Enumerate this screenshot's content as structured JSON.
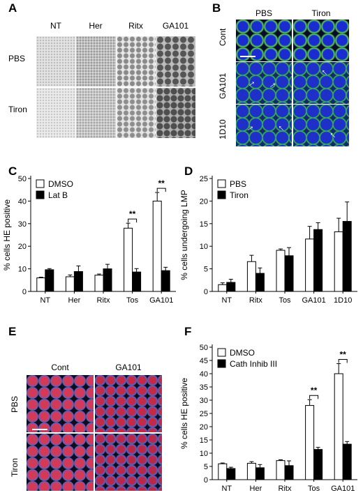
{
  "panels": {
    "A": {
      "label": "A",
      "columns": [
        "NT",
        "Her",
        "Ritx",
        "GA101"
      ],
      "rows": [
        "PBS",
        "Tiron"
      ]
    },
    "B": {
      "label": "B",
      "columns": [
        "PBS",
        "Tiron"
      ],
      "rows": [
        "Cont",
        "GA101",
        "1D10"
      ]
    },
    "E": {
      "label": "E",
      "columns": [
        "Cont",
        "GA101"
      ],
      "rows": [
        "PBS",
        "Tiron"
      ]
    }
  },
  "chart_data": [
    {
      "panel": "C",
      "type": "bar",
      "ylabel": "% cells HE positive",
      "ylim": [
        0,
        50
      ],
      "yticks": [
        0,
        10,
        20,
        30,
        40,
        50
      ],
      "categories": [
        "NT",
        "Her",
        "Ritx",
        "Tos",
        "GA101"
      ],
      "series": [
        {
          "name": "DMSO",
          "color": "#ffffff",
          "values": [
            6,
            6.5,
            7.2,
            28,
            40
          ],
          "errors": [
            0.3,
            0.8,
            0.5,
            2.2,
            3.8
          ]
        },
        {
          "name": "Lat B",
          "color": "#000000",
          "values": [
            9.6,
            8.8,
            10,
            8.6,
            9.2
          ],
          "errors": [
            0.5,
            2.5,
            2.0,
            1.5,
            1.5
          ]
        }
      ],
      "annotations": [
        {
          "category": "Tos",
          "text": "**"
        },
        {
          "category": "GA101",
          "text": "**"
        }
      ],
      "legend": "top-left"
    },
    {
      "panel": "D",
      "type": "bar",
      "ylabel": "% cells undergoing LMP",
      "ylim": [
        0,
        25
      ],
      "yticks": [
        0,
        5,
        10,
        15,
        20,
        25
      ],
      "categories": [
        "NT",
        "Ritx",
        "Tos",
        "GA101",
        "1D10"
      ],
      "series": [
        {
          "name": "PBS",
          "color": "#ffffff",
          "values": [
            1.5,
            6.6,
            9.1,
            11.6,
            13.2
          ],
          "errors": [
            0.4,
            1.4,
            0.3,
            2.8,
            3.0
          ]
        },
        {
          "name": "Tiron",
          "color": "#000000",
          "values": [
            2.0,
            4.0,
            7.9,
            13.7,
            15.5
          ],
          "errors": [
            0.7,
            1.2,
            1.8,
            1.5,
            4.3
          ]
        }
      ],
      "legend": "top-left"
    },
    {
      "panel": "F",
      "type": "bar",
      "ylabel": "% cells HE positive",
      "ylim": [
        0,
        50
      ],
      "yticks": [
        0,
        5,
        10,
        15,
        20,
        25,
        30,
        35,
        40,
        45,
        50
      ],
      "categories": [
        "NT",
        "Her",
        "Ritx",
        "Tos",
        "GA101"
      ],
      "series": [
        {
          "name": "DMSO",
          "color": "#ffffff",
          "values": [
            6,
            6.2,
            7.2,
            28,
            40
          ],
          "errors": [
            0.3,
            0.6,
            0.3,
            2.2,
            3.8
          ]
        },
        {
          "name": "Cath Inhib III",
          "color": "#000000",
          "values": [
            4.2,
            4.5,
            5.3,
            11.4,
            13.4
          ],
          "errors": [
            0.5,
            1.2,
            1.8,
            0.8,
            1.0
          ]
        }
      ],
      "annotations": [
        {
          "category": "Tos",
          "text": "**"
        },
        {
          "category": "GA101",
          "text": "**"
        }
      ],
      "legend": "top-left"
    }
  ],
  "chart_labels": [
    "C",
    "D",
    "F"
  ]
}
